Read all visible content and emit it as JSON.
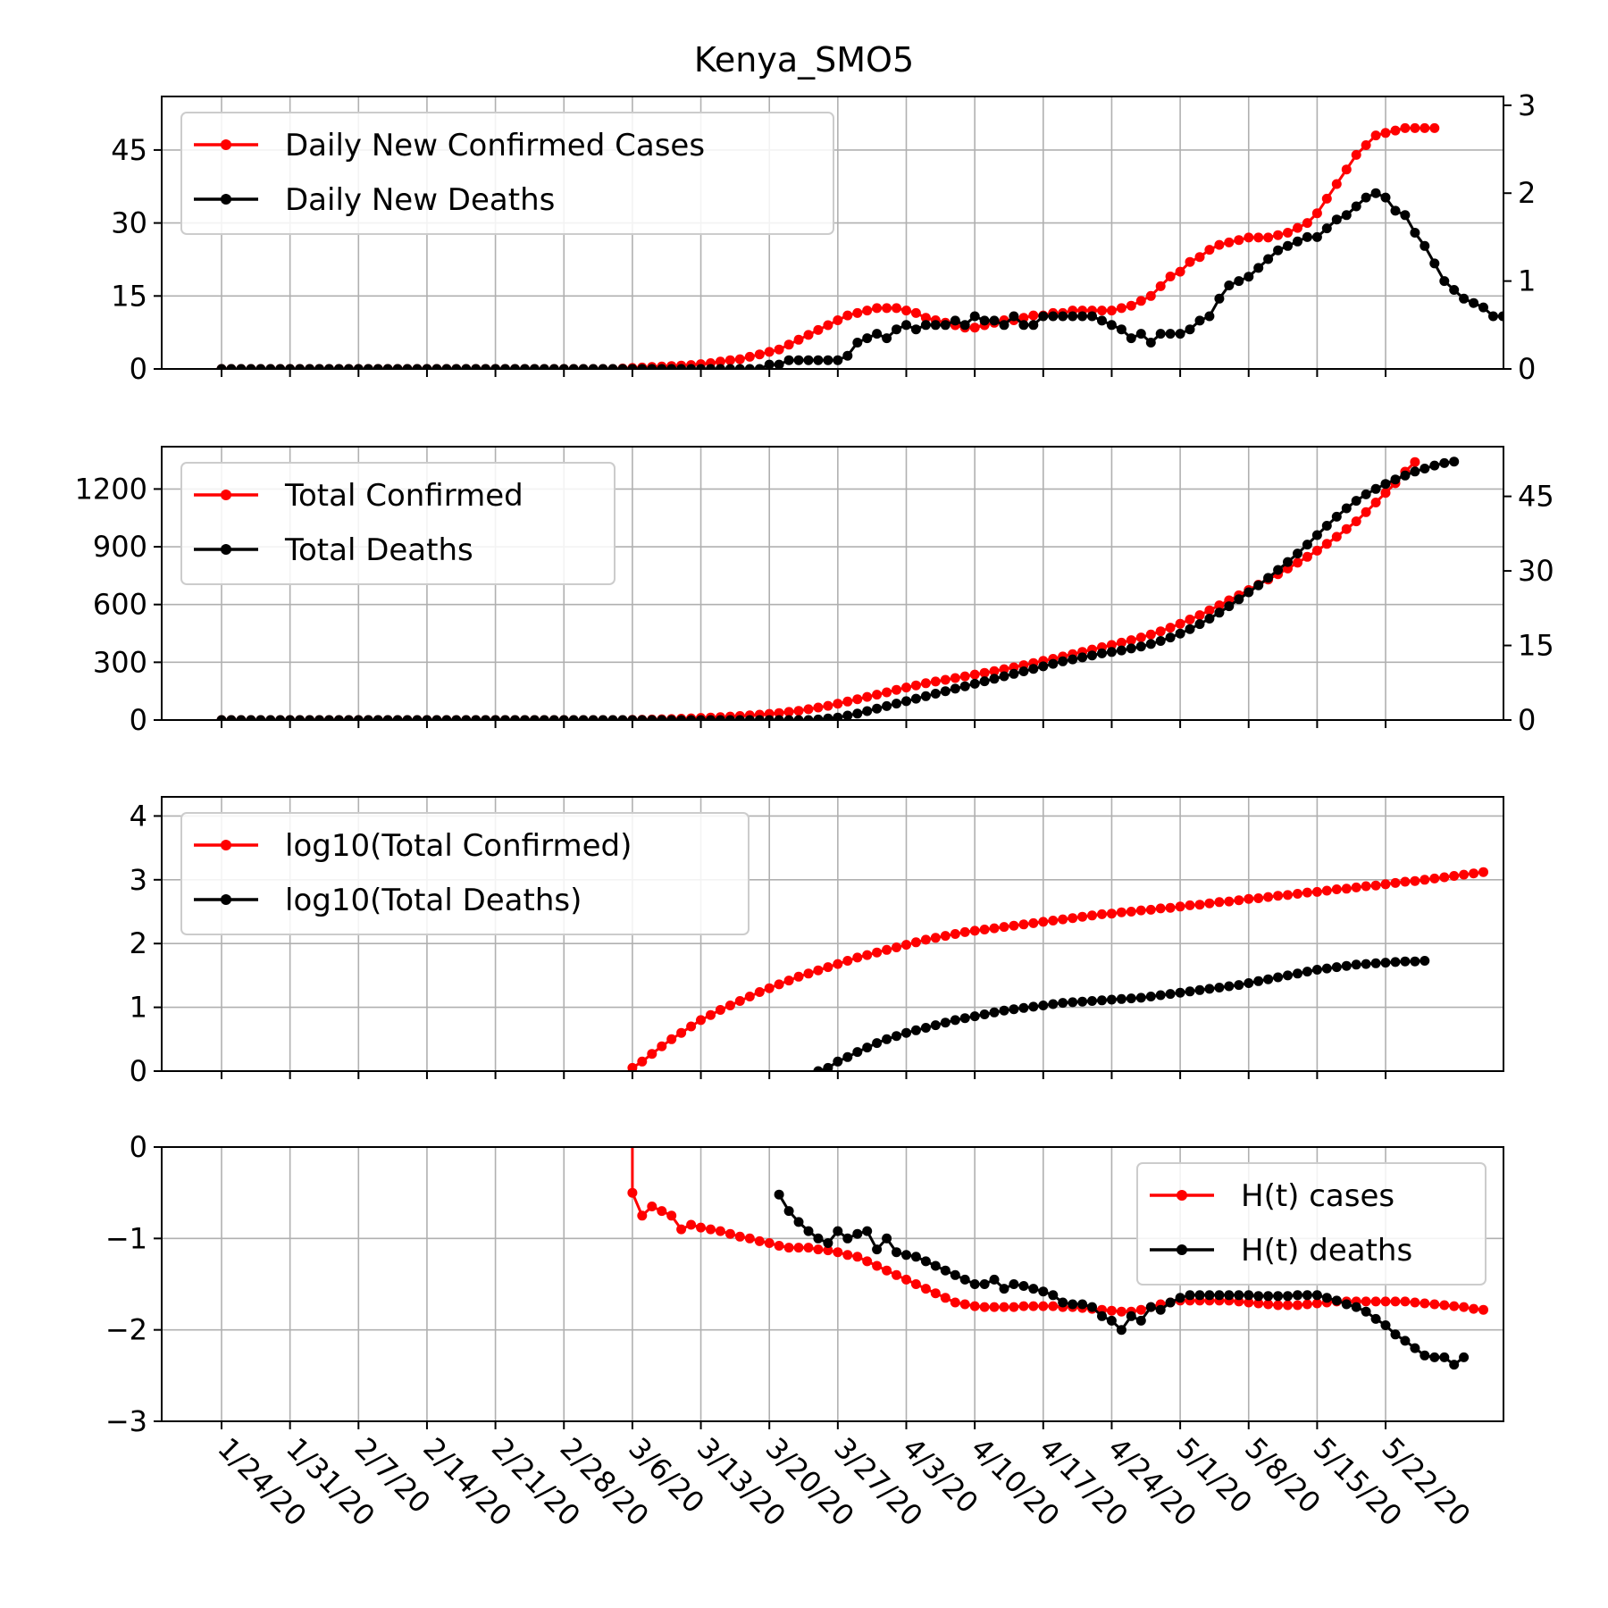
{
  "title": "Kenya_SMO5",
  "colors": {
    "cases": "#ff0000",
    "deaths": "#000000"
  },
  "chart_data": [
    {
      "type": "line",
      "panel": "daily",
      "x_tick_labels": [
        "1/24/20",
        "1/31/20",
        "2/7/20",
        "2/14/20",
        "2/21/20",
        "2/28/20",
        "3/6/20",
        "3/13/20",
        "3/20/20",
        "3/27/20",
        "4/3/20",
        "4/10/20",
        "4/17/20",
        "4/24/20",
        "5/1/20",
        "5/8/20",
        "5/15/20",
        "5/22/20"
      ],
      "x_tick_days": [
        0,
        7,
        14,
        21,
        28,
        35,
        42,
        49,
        56,
        63,
        70,
        77,
        84,
        91,
        98,
        105,
        112,
        119
      ],
      "ylim": [
        0,
        56
      ],
      "yticks": [
        0,
        15,
        30,
        45
      ],
      "y2lim": [
        0,
        3.1
      ],
      "y2ticks": [
        0,
        1,
        2,
        3
      ],
      "legend": "upper left",
      "series": [
        {
          "name": "Daily New Confirmed Cases",
          "axis": "left",
          "color": "#ff0000",
          "x_day_start": 0,
          "values": [
            0,
            0,
            0,
            0,
            0,
            0,
            0,
            0,
            0,
            0,
            0,
            0,
            0,
            0,
            0,
            0,
            0,
            0,
            0,
            0,
            0,
            0,
            0,
            0,
            0,
            0,
            0,
            0,
            0,
            0,
            0,
            0,
            0,
            0,
            0,
            0,
            0,
            0,
            0,
            0,
            0,
            0.1,
            0.2,
            0.3,
            0.4,
            0.5,
            0.6,
            0.7,
            0.8,
            1.0,
            1.2,
            1.5,
            1.8,
            2.0,
            2.5,
            3.0,
            3.5,
            4.0,
            5.0,
            6.0,
            7.0,
            8.0,
            9.0,
            10.0,
            11.0,
            11.5,
            12.0,
            12.5,
            12.5,
            12.5,
            12.0,
            11.5,
            10.5,
            10.0,
            9.5,
            9.0,
            8.5,
            8.5,
            9.0,
            9.5,
            10.0,
            10.0,
            10.5,
            11.0,
            11.0,
            11.5,
            11.5,
            12.0,
            12.0,
            12.0,
            12.0,
            12.0,
            12.5,
            13.0,
            14.0,
            15.0,
            17.0,
            19.0,
            20.0,
            22.0,
            23.0,
            24.5,
            25.5,
            26.0,
            26.5,
            27.0,
            27.0,
            27.0,
            27.5,
            28.0,
            29.0,
            30.0,
            32.0,
            35.0,
            38.0,
            41.0,
            44.0,
            46.0,
            48.0,
            48.5,
            49.0,
            49.5,
            49.5,
            49.5,
            49.5
          ]
        },
        {
          "name": "Daily New Deaths",
          "axis": "right",
          "color": "#000000",
          "x_day_start": 0,
          "values": [
            0,
            0,
            0,
            0,
            0,
            0,
            0,
            0,
            0,
            0,
            0,
            0,
            0,
            0,
            0,
            0,
            0,
            0,
            0,
            0,
            0,
            0,
            0,
            0,
            0,
            0,
            0,
            0,
            0,
            0,
            0,
            0,
            0,
            0,
            0,
            0,
            0,
            0,
            0,
            0,
            0,
            0,
            0,
            0,
            0,
            0,
            0,
            0,
            0,
            0,
            0,
            0,
            0,
            0,
            0,
            0,
            0.05,
            0.05,
            0.1,
            0.1,
            0.1,
            0.1,
            0.1,
            0.1,
            0.15,
            0.3,
            0.35,
            0.4,
            0.35,
            0.45,
            0.5,
            0.45,
            0.5,
            0.5,
            0.5,
            0.55,
            0.5,
            0.6,
            0.55,
            0.55,
            0.5,
            0.6,
            0.5,
            0.5,
            0.6,
            0.6,
            0.6,
            0.6,
            0.6,
            0.6,
            0.55,
            0.5,
            0.45,
            0.35,
            0.4,
            0.3,
            0.4,
            0.4,
            0.4,
            0.45,
            0.55,
            0.6,
            0.8,
            0.95,
            1.0,
            1.05,
            1.15,
            1.25,
            1.35,
            1.4,
            1.45,
            1.5,
            1.5,
            1.6,
            1.7,
            1.75,
            1.85,
            1.95,
            2.0,
            1.95,
            1.8,
            1.75,
            1.55,
            1.4,
            1.2,
            1.0,
            0.9,
            0.8,
            0.75,
            0.7,
            0.6,
            0.6,
            0.6,
            0.5,
            0.6
          ]
        }
      ]
    },
    {
      "type": "line",
      "panel": "total",
      "ylim": [
        0,
        1420
      ],
      "yticks": [
        0,
        300,
        600,
        900,
        1200
      ],
      "y2lim": [
        0,
        55
      ],
      "y2ticks": [
        0,
        15,
        30,
        45
      ],
      "legend": "upper left",
      "series": [
        {
          "name": "Total Confirmed",
          "axis": "left",
          "color": "#ff0000",
          "x_day_start": 0,
          "values": [
            0,
            0,
            0,
            0,
            0,
            0,
            0,
            0,
            0,
            0,
            0,
            0,
            0,
            0,
            0,
            0,
            0,
            0,
            0,
            0,
            0,
            0,
            0,
            0,
            0,
            0,
            0,
            0,
            0,
            0,
            0,
            0,
            0,
            0,
            0,
            0,
            0,
            0,
            0,
            0,
            0,
            0,
            1,
            2,
            3,
            4,
            5,
            7,
            9,
            11,
            13,
            15,
            18,
            21,
            24,
            28,
            32,
            36,
            42,
            48,
            56,
            65,
            74,
            85,
            96,
            108,
            120,
            132,
            144,
            157,
            169,
            180,
            191,
            200,
            209,
            218,
            227,
            236,
            245,
            254,
            264,
            274,
            285,
            296,
            307,
            318,
            330,
            342,
            354,
            366,
            378,
            390,
            402,
            415,
            429,
            444,
            461,
            480,
            500,
            522,
            545,
            570,
            596,
            622,
            648,
            675,
            703,
            730,
            758,
            787,
            817,
            848,
            880,
            915,
            952,
            992,
            1032,
            1080,
            1130,
            1180,
            1230,
            1290,
            1340
          ]
        },
        {
          "name": "Total Deaths",
          "axis": "right",
          "color": "#000000",
          "x_day_start": 0,
          "values": [
            0,
            0,
            0,
            0,
            0,
            0,
            0,
            0,
            0,
            0,
            0,
            0,
            0,
            0,
            0,
            0,
            0,
            0,
            0,
            0,
            0,
            0,
            0,
            0,
            0,
            0,
            0,
            0,
            0,
            0,
            0,
            0,
            0,
            0,
            0,
            0,
            0,
            0,
            0,
            0,
            0,
            0,
            0,
            0,
            0,
            0,
            0,
            0,
            0,
            0,
            0,
            0,
            0,
            0,
            0,
            0,
            0,
            0,
            0,
            0,
            0,
            0.1,
            0.3,
            0.5,
            0.9,
            1.3,
            1.8,
            2.3,
            2.8,
            3.3,
            3.8,
            4.3,
            4.8,
            5.3,
            5.8,
            6.3,
            6.8,
            7.3,
            7.8,
            8.3,
            8.8,
            9.3,
            9.8,
            10.3,
            10.8,
            11.3,
            11.8,
            12.2,
            12.6,
            13.0,
            13.4,
            13.7,
            14.0,
            14.4,
            14.8,
            15.3,
            15.9,
            16.6,
            17.4,
            18.3,
            19.3,
            20.4,
            21.6,
            22.9,
            24.3,
            25.7,
            27.1,
            28.6,
            30.2,
            31.8,
            33.5,
            35.3,
            37.2,
            39.1,
            40.9,
            42.6,
            44.1,
            45.4,
            46.5,
            47.5,
            48.4,
            49.2,
            50.0,
            50.6,
            51.2,
            51.7,
            52.0
          ]
        }
      ]
    },
    {
      "type": "line",
      "panel": "log",
      "ylim": [
        0,
        4.3
      ],
      "yticks": [
        0,
        1,
        2,
        3,
        4
      ],
      "legend": "upper left",
      "series": [
        {
          "name": "log10(Total Confirmed)",
          "color": "#ff0000",
          "x_day_start": 42,
          "values": [
            0.05,
            0.15,
            0.27,
            0.39,
            0.5,
            0.6,
            0.7,
            0.8,
            0.88,
            0.96,
            1.03,
            1.1,
            1.17,
            1.24,
            1.3,
            1.36,
            1.42,
            1.48,
            1.53,
            1.58,
            1.63,
            1.68,
            1.73,
            1.78,
            1.82,
            1.86,
            1.9,
            1.94,
            1.98,
            2.02,
            2.06,
            2.09,
            2.12,
            2.15,
            2.18,
            2.2,
            2.22,
            2.24,
            2.26,
            2.28,
            2.3,
            2.32,
            2.34,
            2.36,
            2.38,
            2.4,
            2.42,
            2.44,
            2.46,
            2.47,
            2.49,
            2.5,
            2.52,
            2.53,
            2.55,
            2.56,
            2.58,
            2.6,
            2.61,
            2.63,
            2.65,
            2.66,
            2.68,
            2.7,
            2.71,
            2.73,
            2.75,
            2.76,
            2.78,
            2.8,
            2.81,
            2.83,
            2.85,
            2.86,
            2.88,
            2.9,
            2.91,
            2.93,
            2.95,
            2.97,
            2.98,
            3.0,
            3.02,
            3.04,
            3.06,
            3.08,
            3.1,
            3.12
          ]
        },
        {
          "name": "log10(Total Deaths)",
          "color": "#000000",
          "x_day_start": 61,
          "values": [
            0.0,
            0.05,
            0.15,
            0.22,
            0.3,
            0.37,
            0.44,
            0.5,
            0.55,
            0.6,
            0.64,
            0.68,
            0.72,
            0.76,
            0.8,
            0.83,
            0.86,
            0.89,
            0.92,
            0.95,
            0.97,
            0.99,
            1.01,
            1.03,
            1.05,
            1.07,
            1.08,
            1.09,
            1.1,
            1.11,
            1.12,
            1.13,
            1.14,
            1.15,
            1.17,
            1.19,
            1.21,
            1.23,
            1.25,
            1.27,
            1.29,
            1.31,
            1.33,
            1.35,
            1.38,
            1.41,
            1.44,
            1.47,
            1.5,
            1.53,
            1.56,
            1.59,
            1.61,
            1.63,
            1.65,
            1.67,
            1.68,
            1.69,
            1.7,
            1.71,
            1.72,
            1.72,
            1.73
          ]
        }
      ]
    },
    {
      "type": "line",
      "panel": "hazard",
      "ylim": [
        -3,
        0
      ],
      "yticks": [
        0,
        -1,
        -2,
        -3
      ],
      "y_tick_labels": [
        "0",
        "−1",
        "−2",
        "−3"
      ],
      "legend": "upper right",
      "series": [
        {
          "name": "H(t) cases",
          "color": "#ff0000",
          "x_day_start": 42,
          "values": [
            -0.5,
            -0.75,
            -0.65,
            -0.7,
            -0.75,
            -0.9,
            -0.85,
            -0.88,
            -0.9,
            -0.92,
            -0.95,
            -0.98,
            -1.0,
            -1.03,
            -1.05,
            -1.08,
            -1.1,
            -1.1,
            -1.1,
            -1.12,
            -1.13,
            -1.15,
            -1.18,
            -1.2,
            -1.25,
            -1.3,
            -1.35,
            -1.4,
            -1.45,
            -1.5,
            -1.55,
            -1.6,
            -1.65,
            -1.7,
            -1.72,
            -1.74,
            -1.75,
            -1.75,
            -1.75,
            -1.75,
            -1.74,
            -1.74,
            -1.74,
            -1.74,
            -1.75,
            -1.75,
            -1.76,
            -1.77,
            -1.78,
            -1.79,
            -1.8,
            -1.8,
            -1.78,
            -1.75,
            -1.72,
            -1.7,
            -1.68,
            -1.68,
            -1.68,
            -1.68,
            -1.68,
            -1.68,
            -1.69,
            -1.7,
            -1.71,
            -1.72,
            -1.73,
            -1.73,
            -1.73,
            -1.72,
            -1.71,
            -1.7,
            -1.69,
            -1.69,
            -1.69,
            -1.69,
            -1.69,
            -1.69,
            -1.69,
            -1.69,
            -1.7,
            -1.71,
            -1.72,
            -1.73,
            -1.74,
            -1.75,
            -1.77,
            -1.78
          ]
        },
        {
          "name": "H(t) deaths",
          "color": "#000000",
          "x_day_start": 57,
          "values": [
            -0.52,
            -0.7,
            -0.82,
            -0.92,
            -1.0,
            -1.05,
            -0.92,
            -1.0,
            -0.95,
            -0.92,
            -1.12,
            -1.0,
            -1.15,
            -1.18,
            -1.2,
            -1.25,
            -1.3,
            -1.35,
            -1.4,
            -1.45,
            -1.5,
            -1.5,
            -1.45,
            -1.55,
            -1.5,
            -1.52,
            -1.55,
            -1.58,
            -1.62,
            -1.7,
            -1.72,
            -1.72,
            -1.75,
            -1.85,
            -1.9,
            -2.0,
            -1.85,
            -1.9,
            -1.75,
            -1.78,
            -1.7,
            -1.65,
            -1.62,
            -1.62,
            -1.62,
            -1.62,
            -1.62,
            -1.62,
            -1.62,
            -1.63,
            -1.63,
            -1.63,
            -1.63,
            -1.62,
            -1.62,
            -1.62,
            -1.65,
            -1.68,
            -1.72,
            -1.75,
            -1.8,
            -1.88,
            -1.95,
            -2.05,
            -2.12,
            -2.2,
            -2.28,
            -2.3,
            -2.3,
            -2.38,
            -2.3
          ]
        }
      ]
    }
  ]
}
